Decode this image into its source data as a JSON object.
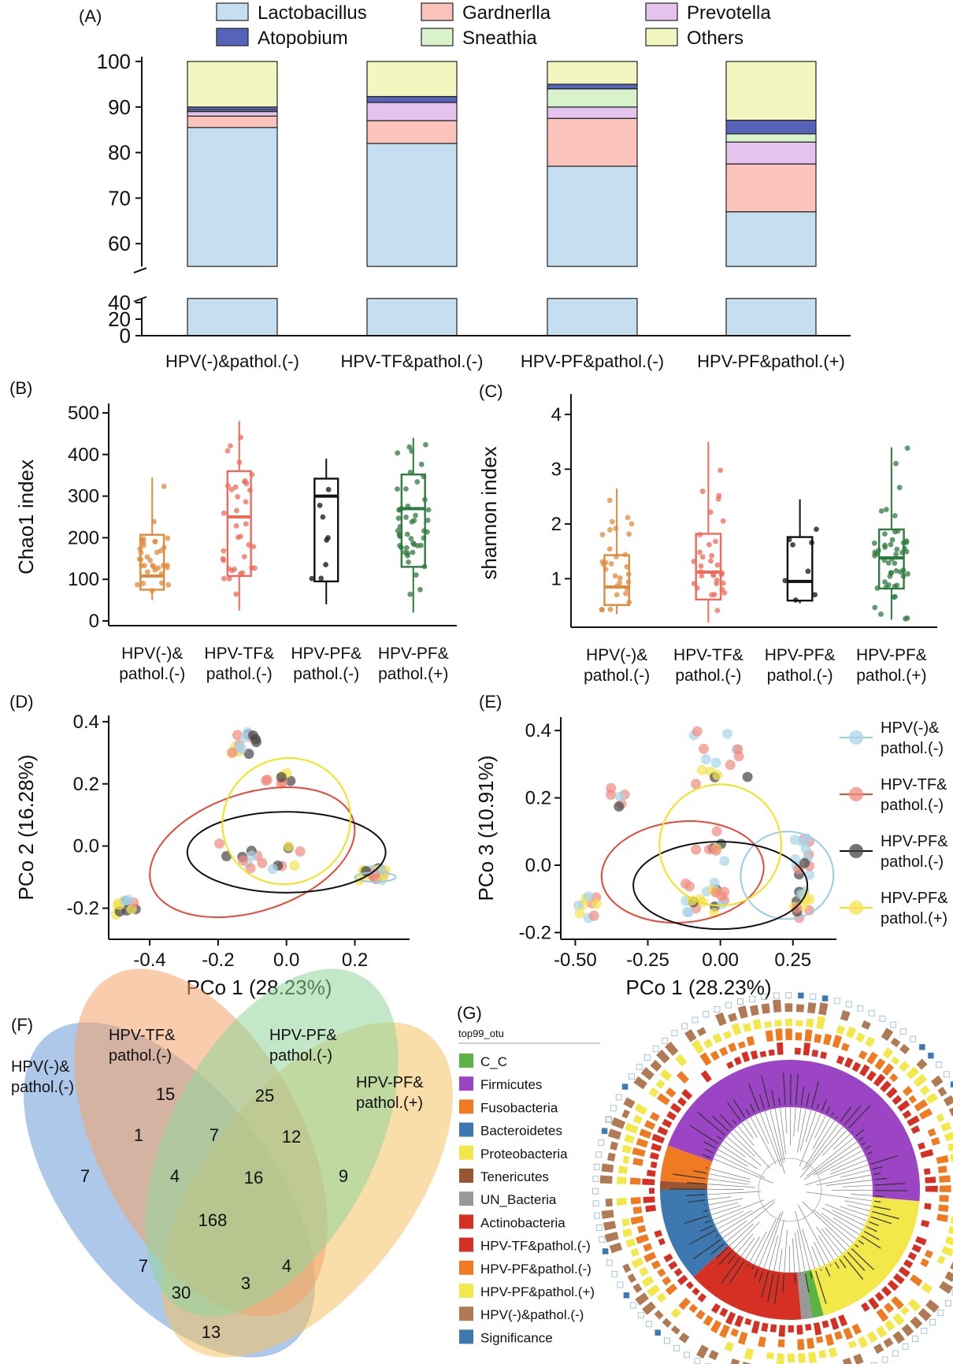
{
  "panels": {
    "A": "(A)",
    "B": "(B)",
    "C": "(C)",
    "D": "(D)",
    "E": "(E)",
    "F": "(F)",
    "G": "(G)"
  },
  "chart_data": [
    {
      "panel": "A",
      "type": "bar",
      "stacked": true,
      "axis_break": [
        45,
        55
      ],
      "categories": [
        "HPV(-)&pathol.(-)",
        "HPV-TF&pathol.(-)",
        "HPV-PF&pathol.(-)",
        "HPV-PF&pathol.(+)"
      ],
      "ylim": [
        0,
        100
      ],
      "yticks": [
        0,
        20,
        40,
        60,
        70,
        80,
        90,
        100
      ],
      "legend": {
        "placement": "top",
        "entries": [
          "Lactobacillus",
          "Gardnerlla",
          "Prevotella",
          "Atopobium",
          "Sneathia",
          "Others"
        ]
      },
      "colors": {
        "Lactobacillus": "#c5dff0",
        "Gardnerlla": "#fbc3bc",
        "Prevotella": "#e4c3ee",
        "Atopobium": "#5763b8",
        "Sneathia": "#d8f3cc",
        "Others": "#f4f6c0"
      },
      "series": [
        {
          "name": "Lactobacillus",
          "values": [
            85.5,
            82.0,
            77.0,
            67.0
          ]
        },
        {
          "name": "Gardnerlla",
          "values": [
            2.5,
            5.0,
            10.5,
            10.5
          ]
        },
        {
          "name": "Prevotella",
          "values": [
            1.0,
            4.0,
            2.5,
            4.8
          ]
        },
        {
          "name": "Sneathia",
          "values": [
            0.3,
            0.0,
            4.0,
            1.8
          ]
        },
        {
          "name": "Atopobium",
          "values": [
            0.7,
            1.3,
            1.0,
            3.0
          ]
        },
        {
          "name": "Others",
          "values": [
            10.0,
            7.7,
            5.0,
            12.9
          ]
        }
      ]
    },
    {
      "panel": "B",
      "type": "box",
      "ylabel": "Chao1 index",
      "ylim": [
        0,
        500
      ],
      "yticks": [
        0,
        100,
        200,
        300,
        400,
        500
      ],
      "categories": [
        "HPV(-)&\npathol.(-)",
        "HPV-TF&\npathol.(-)",
        "HPV-PF&\npathol.(-)",
        "HPV-PF&\npathol.(+)"
      ],
      "colors": [
        "#e08a3c",
        "#ee6a5a",
        "#111111",
        "#2f7a3f"
      ],
      "boxes": [
        {
          "min": 50,
          "q1": 75,
          "median": 108,
          "q3": 207,
          "max": 345
        },
        {
          "min": 25,
          "q1": 108,
          "median": 250,
          "q3": 360,
          "max": 480
        },
        {
          "min": 40,
          "q1": 95,
          "median": 300,
          "q3": 342,
          "max": 390
        },
        {
          "min": 20,
          "q1": 130,
          "median": 270,
          "q3": 352,
          "max": 440
        }
      ]
    },
    {
      "panel": "C",
      "type": "box",
      "ylabel": "shannon index",
      "ylim": [
        0.2,
        4.2
      ],
      "yticks": [
        1,
        2,
        3,
        4
      ],
      "categories": [
        "HPV(-)&\npathol.(-)",
        "HPV-TF&\npathol.(-)",
        "HPV-PF&\npathol.(-)",
        "HPV-PF&\npathol.(+)"
      ],
      "colors": [
        "#e08a3c",
        "#ee6a5a",
        "#111111",
        "#2f7a3f"
      ],
      "boxes": [
        {
          "min": 0.35,
          "q1": 0.52,
          "median": 0.85,
          "q3": 1.43,
          "max": 2.65
        },
        {
          "min": 0.2,
          "q1": 0.62,
          "median": 1.12,
          "q3": 1.82,
          "max": 3.5
        },
        {
          "min": 0.55,
          "q1": 0.6,
          "median": 0.95,
          "q3": 1.76,
          "max": 2.45
        },
        {
          "min": 0.25,
          "q1": 0.82,
          "median": 1.38,
          "q3": 1.9,
          "max": 3.4
        }
      ]
    },
    {
      "panel": "D",
      "type": "scatter",
      "xlabel": "PCo 1 (28.23%)",
      "ylabel": "PCo 2 (16.28%)",
      "xlim": [
        -0.52,
        0.36
      ],
      "ylim": [
        -0.3,
        0.42
      ],
      "xticks": [
        -0.4,
        -0.2,
        0.0,
        0.2
      ],
      "yticks": [
        -0.2,
        0.0,
        0.2,
        0.4
      ]
    },
    {
      "panel": "E",
      "type": "scatter",
      "xlabel": "PCo 1 (28.23%)",
      "ylabel": "PCo 3 (10.91%)",
      "xlim": [
        -0.55,
        0.4
      ],
      "ylim": [
        -0.22,
        0.44
      ],
      "xticks": [
        -0.5,
        -0.25,
        0.0,
        0.25
      ],
      "yticks": [
        -0.2,
        0.0,
        0.2,
        0.4
      ],
      "legend": {
        "placement": "right",
        "entries": [
          "HPV(-)&\npathol.(-)",
          "HPV-TF&\npathol.(-)",
          "HPV-PF&\npathol.(-)",
          "HPV-PF&\npathol.(+)"
        ]
      }
    },
    {
      "panel": "F",
      "type": "venn",
      "sets": [
        "HPV(-)&\npathol.(-)",
        "HPV-TF&\npathol.(-)",
        "HPV-PF&\npathol.(-)",
        "HPV-PF&\npathol.(+)"
      ],
      "colors": [
        "#6a9bd6",
        "#f4a36a",
        "#8fd69a",
        "#f4c262"
      ],
      "counts": [
        {
          "sets": "A",
          "value": "7"
        },
        {
          "sets": "B",
          "value": "15"
        },
        {
          "sets": "C",
          "value": "25"
        },
        {
          "sets": "D",
          "value": "9"
        },
        {
          "sets": "AB",
          "value": "1"
        },
        {
          "sets": "BC",
          "value": "7"
        },
        {
          "sets": "CD",
          "value": "12"
        },
        {
          "sets": "ABC",
          "value": "4"
        },
        {
          "sets": "BCD",
          "value": "16"
        },
        {
          "sets": "ABCD",
          "value": "168"
        },
        {
          "sets": "AC",
          "value": "7"
        },
        {
          "sets": "BD",
          "value": "4"
        },
        {
          "sets": "ACD",
          "value": "30"
        },
        {
          "sets": "ABD",
          "value": "3"
        },
        {
          "sets": "AD",
          "value": "13"
        }
      ]
    },
    {
      "panel": "G",
      "type": "circular-tree",
      "legend_title": "top99_otu",
      "legend": [
        {
          "name": "C_C",
          "color": "#5bb343"
        },
        {
          "name": "Firmicutes",
          "color": "#9b45c4"
        },
        {
          "name": "Fusobacteria",
          "color": "#f07a22"
        },
        {
          "name": "Bacteroidetes",
          "color": "#3d78b0"
        },
        {
          "name": "Proteobacteria",
          "color": "#f2e84a"
        },
        {
          "name": "Tenericutes",
          "color": "#9a5532"
        },
        {
          "name": "UN_Bacteria",
          "color": "#999999"
        },
        {
          "name": "Actinobacteria",
          "color": "#d63024"
        },
        {
          "name": "HPV-TF&pathol.(-)",
          "color": "#d63024"
        },
        {
          "name": "HPV-PF&pathol.(-)",
          "color": "#f07a22"
        },
        {
          "name": "HPV-PF&pathol.(+)",
          "color": "#f2e84a"
        },
        {
          "name": "HPV(-)&pathol.(-)",
          "color": "#b07a55"
        },
        {
          "name": "Significance",
          "color": "#3d78b0"
        }
      ],
      "phylum_sectors": [
        {
          "name": "Firmicutes",
          "from": -70,
          "to": 95
        },
        {
          "name": "Proteobacteria",
          "from": 95,
          "to": 165
        },
        {
          "name": "C_C",
          "from": 165,
          "to": 170
        },
        {
          "name": "UN_Bacteria",
          "from": 170,
          "to": 175
        },
        {
          "name": "Actinobacteria",
          "from": 175,
          "to": 228
        },
        {
          "name": "Bacteroidetes",
          "from": 228,
          "to": 270
        },
        {
          "name": "Tenericutes",
          "from": 270,
          "to": 274
        },
        {
          "name": "Fusobacteria",
          "from": 274,
          "to": 290
        }
      ]
    }
  ]
}
